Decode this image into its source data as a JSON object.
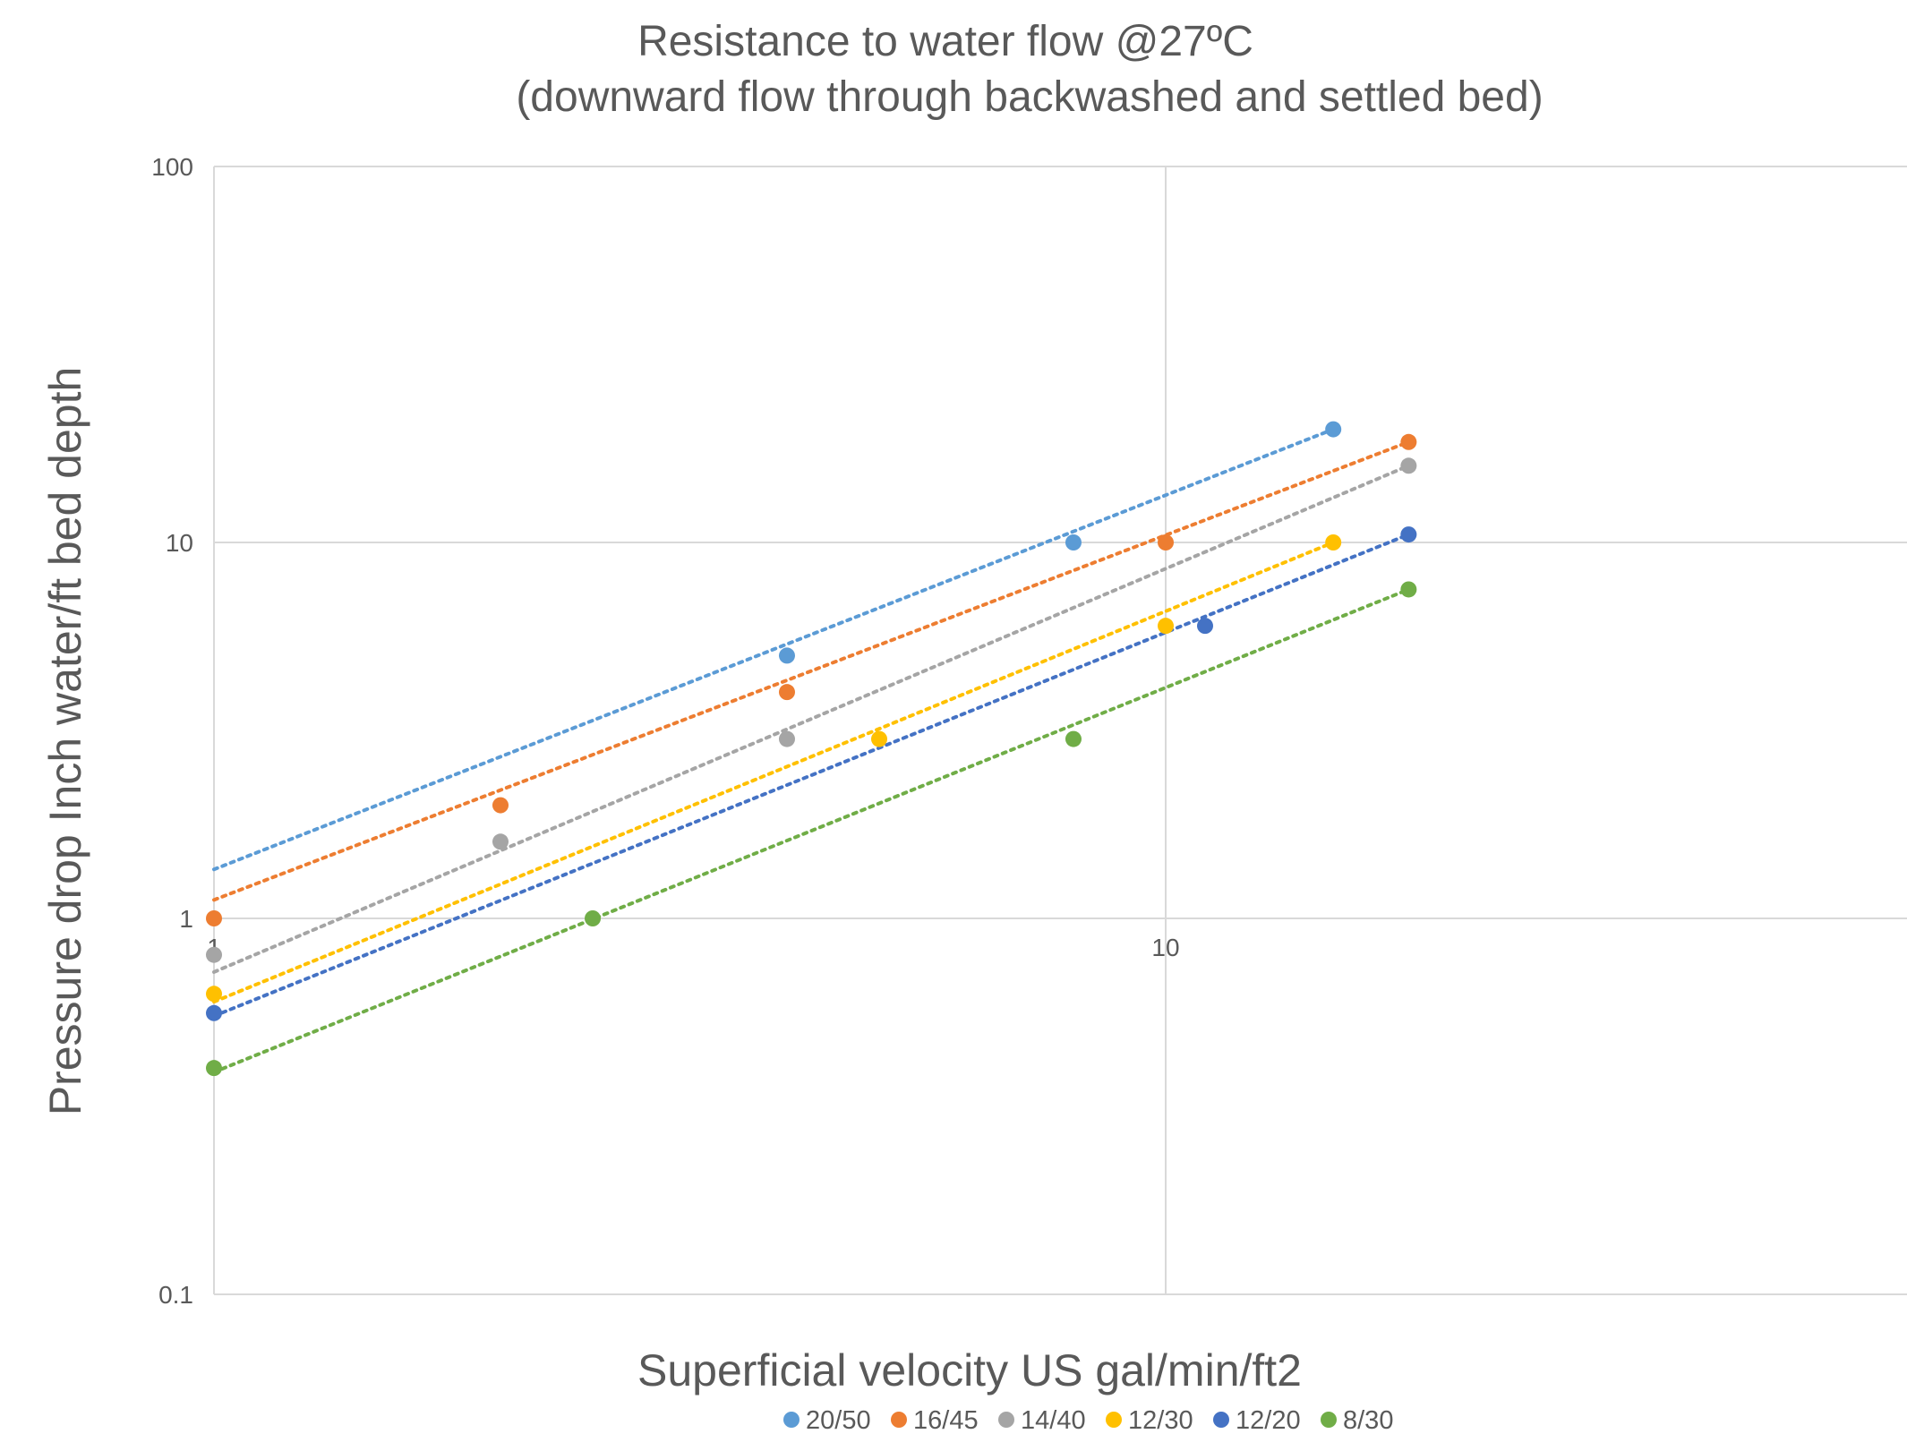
{
  "chart_data": {
    "type": "scatter",
    "title": "Resistance to water flow @27ºC",
    "subtitle": "(downward flow through backwashed and settled bed)",
    "xlabel": "Superficial velocity US gal/min/ft2",
    "ylabel": "Pressure drop Inch water/ft bed depth",
    "x_scale": "log",
    "y_scale": "log",
    "xlim": [
      1,
      50
    ],
    "ylim": [
      0.1,
      100
    ],
    "x_tick_labels": [
      "1",
      "10"
    ],
    "y_tick_labels": [
      "0.1",
      "1",
      "10",
      "100"
    ],
    "grid": true,
    "legend_position": "bottom",
    "trendlines": "power, dotted",
    "series": [
      {
        "name": "20/50",
        "color": "#5B9BD5",
        "x": [
          4,
          8,
          15
        ],
        "y": [
          5,
          10,
          20
        ],
        "trend": [
          [
            1,
            1.35
          ],
          [
            15,
            20
          ]
        ]
      },
      {
        "name": "16/45",
        "color": "#ED7D31",
        "x": [
          1,
          2,
          4,
          10,
          18
        ],
        "y": [
          1,
          2,
          4,
          10,
          18.5
        ],
        "trend": [
          [
            1,
            1.12
          ],
          [
            18,
            18.5
          ]
        ]
      },
      {
        "name": "14/40",
        "color": "#A5A5A5",
        "x": [
          1,
          2,
          4,
          18
        ],
        "y": [
          0.8,
          1.6,
          3,
          16
        ],
        "trend": [
          [
            1,
            0.72
          ],
          [
            18,
            16
          ]
        ]
      },
      {
        "name": "12/30",
        "color": "#FFC000",
        "x": [
          1,
          5,
          10,
          15
        ],
        "y": [
          0.63,
          3,
          6,
          10
        ],
        "trend": [
          [
            1,
            0.6
          ],
          [
            15,
            10
          ]
        ]
      },
      {
        "name": "12/20",
        "color": "#4472C4",
        "x": [
          1,
          11,
          18
        ],
        "y": [
          0.56,
          6,
          10.5
        ],
        "trend": [
          [
            1,
            0.55
          ],
          [
            18,
            10.5
          ]
        ]
      },
      {
        "name": "8/30",
        "color": "#70AD47",
        "x": [
          1,
          2.5,
          8,
          18
        ],
        "y": [
          0.4,
          1,
          3,
          7.5
        ],
        "trend": [
          [
            1,
            0.39
          ],
          [
            18,
            7.5
          ]
        ]
      }
    ]
  }
}
